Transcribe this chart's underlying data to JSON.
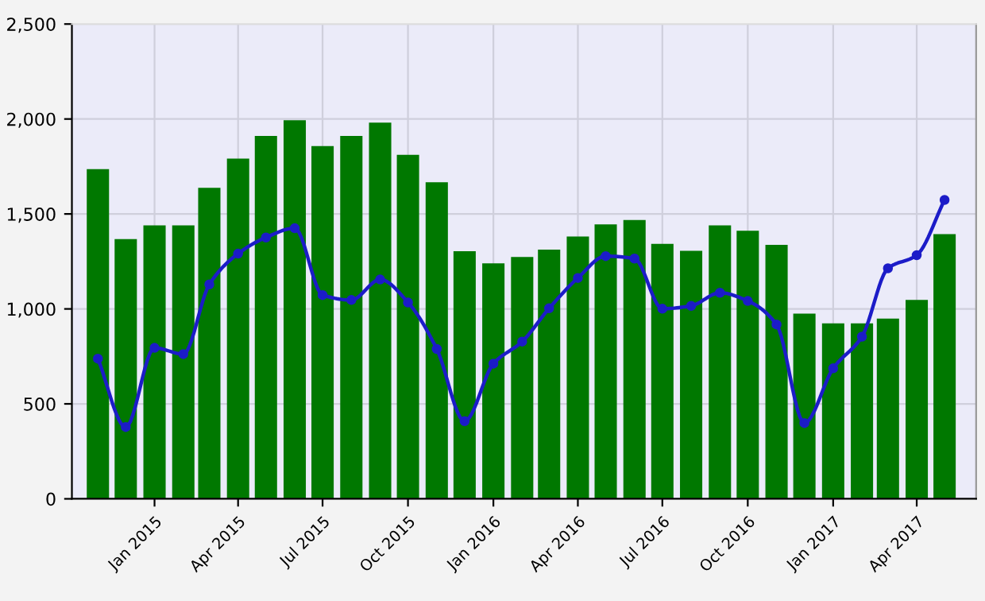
{
  "chart_data": {
    "type": "bar",
    "x": [
      "2014-11",
      "2014-12",
      "2015-01",
      "2015-02",
      "2015-03",
      "2015-04",
      "2015-05",
      "2015-06",
      "2015-07",
      "2015-08",
      "2015-09",
      "2015-10",
      "2015-11",
      "2015-12",
      "2016-01",
      "2016-02",
      "2016-03",
      "2016-04",
      "2016-05",
      "2016-06",
      "2016-07",
      "2016-08",
      "2016-09",
      "2016-10",
      "2016-11",
      "2016-12",
      "2017-01",
      "2017-02",
      "2017-03",
      "2017-04",
      "2017-05"
    ],
    "series": [
      {
        "color": "#007800",
        "values": [
          1736,
          1368,
          1440,
          1440,
          1638,
          1792,
          1911,
          1993,
          1857,
          1911,
          1981,
          1811,
          1667,
          1304,
          1240,
          1273,
          1312,
          1381,
          1445,
          1468,
          1343,
          1306,
          1440,
          1412,
          1337,
          975,
          924,
          924,
          949,
          1047,
          1394
        ]
      },
      {
        "type": "line",
        "color": "#1c1cc8",
        "marker": "circle",
        "values": [
          738,
          378,
          795,
          762,
          1129,
          1291,
          1376,
          1425,
          1073,
          1047,
          1155,
          1034,
          789,
          409,
          712,
          828,
          1003,
          1163,
          1278,
          1265,
          1001,
          1016,
          1085,
          1042,
          918,
          399,
          687,
          854,
          1214,
          1283,
          1574
        ]
      }
    ],
    "xlim": [
      "2014-10-04",
      "2017-06-04"
    ],
    "xticks": [
      {
        "value": "2015-01",
        "label": "Jan 2015"
      },
      {
        "value": "2015-04",
        "label": "Apr 2015"
      },
      {
        "value": "2015-07",
        "label": "Jul 2015"
      },
      {
        "value": "2015-10",
        "label": "Oct 2015"
      },
      {
        "value": "2016-01",
        "label": "Jan 2016"
      },
      {
        "value": "2016-04",
        "label": "Apr 2016"
      },
      {
        "value": "2016-07",
        "label": "Jul 2016"
      },
      {
        "value": "2016-10",
        "label": "Oct 2016"
      },
      {
        "value": "2017-01",
        "label": "Jan 2017"
      },
      {
        "value": "2017-04",
        "label": "Apr 2017"
      }
    ],
    "ylim": [
      0,
      2500
    ],
    "yticks": [
      {
        "value": 0,
        "label": "0"
      },
      {
        "value": 500,
        "label": "500"
      },
      {
        "value": 1000,
        "label": "1,000"
      },
      {
        "value": 1500,
        "label": "1,500"
      },
      {
        "value": 2000,
        "label": "2,000"
      },
      {
        "value": 2500,
        "label": "2,500"
      }
    ],
    "grid": true
  }
}
